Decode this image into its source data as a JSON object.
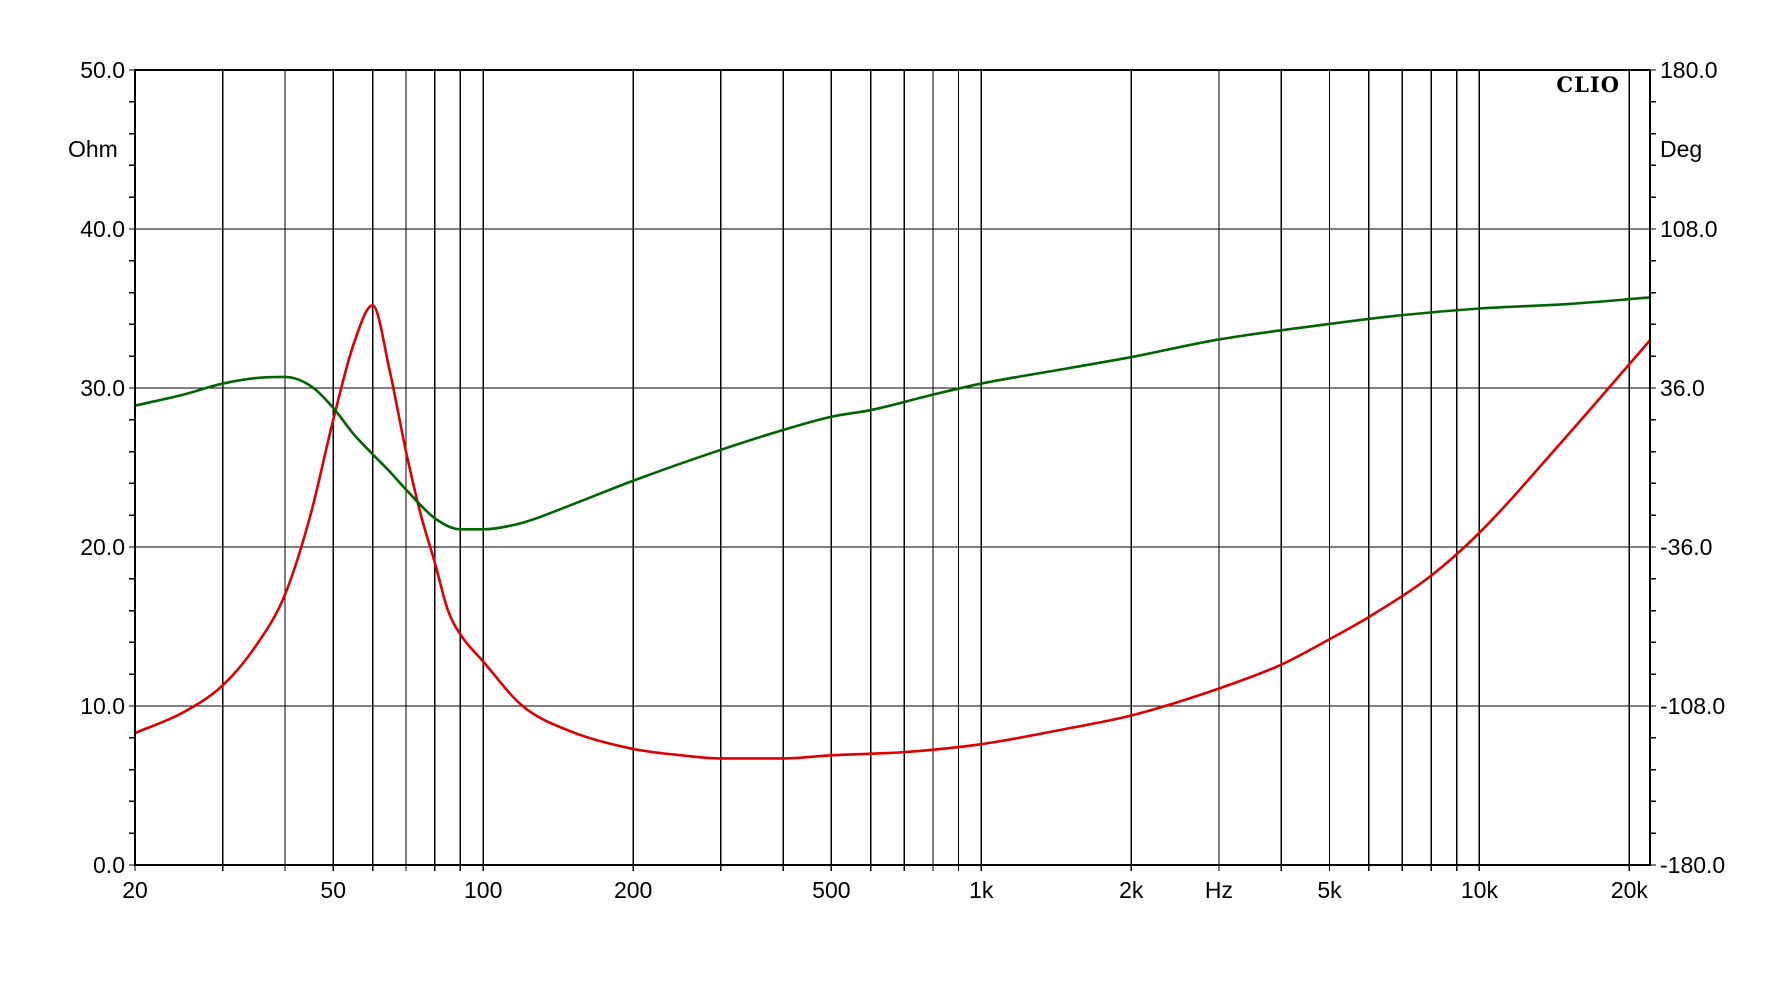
{
  "chart_data": {
    "type": "line",
    "brand": "CLIO",
    "x_scale": "log",
    "xlim": [
      20,
      22000
    ],
    "x_tick_values": [
      20,
      50,
      100,
      200,
      500,
      1000,
      2000,
      5000,
      10000,
      20000
    ],
    "x_tick_labels": [
      "20",
      "50",
      "100",
      "200",
      "500",
      "1k",
      "2k",
      "5k",
      "10k",
      "20k"
    ],
    "x_unit_label": "Hz",
    "x_unit_position": 3000,
    "x_gridlines": [
      20,
      30,
      40,
      50,
      60,
      70,
      80,
      90,
      100,
      200,
      300,
      400,
      500,
      600,
      700,
      800,
      900,
      1000,
      2000,
      3000,
      4000,
      5000,
      6000,
      7000,
      8000,
      9000,
      10000,
      20000
    ],
    "y_left": {
      "unit": "Ohm",
      "ylim": [
        0,
        50
      ],
      "tick_values": [
        0,
        10,
        20,
        30,
        40,
        50
      ],
      "tick_labels": [
        "0.0",
        "10.0",
        "20.0",
        "30.0",
        "40.0",
        "50.0"
      ]
    },
    "y_right": {
      "unit": "Deg",
      "ylim": [
        -180,
        180
      ],
      "tick_values": [
        -180,
        -108,
        -36,
        36,
        108,
        180
      ],
      "tick_labels": [
        "-180.0",
        "-108.0",
        "-36.0",
        "36.0",
        "108.0",
        "180.0"
      ]
    },
    "grid": true,
    "series": [
      {
        "color": "#dd0000",
        "axis": "left",
        "x": [
          20,
          25,
          30,
          35,
          40,
          45,
          50,
          55,
          60,
          65,
          70,
          75,
          80,
          85,
          90,
          100,
          120,
          150,
          200,
          250,
          300,
          400,
          500,
          700,
          1000,
          1500,
          2000,
          3000,
          4000,
          5000,
          6000,
          8000,
          10000,
          15000,
          20000,
          22000
        ],
        "y": [
          8.3,
          9.6,
          11.3,
          13.8,
          17.0,
          22.0,
          28.0,
          32.8,
          35.2,
          31.0,
          26.0,
          22.0,
          19.0,
          16.0,
          14.5,
          12.8,
          10.0,
          8.4,
          7.3,
          6.9,
          6.7,
          6.7,
          6.9,
          7.1,
          7.6,
          8.6,
          9.4,
          11.1,
          12.6,
          14.2,
          15.6,
          18.2,
          20.9,
          27.0,
          31.5,
          33.0
        ]
      },
      {
        "color": "#006400",
        "axis": "right",
        "x": [
          20,
          25,
          30,
          35,
          40,
          45,
          50,
          55,
          60,
          65,
          70,
          80,
          90,
          100,
          120,
          150,
          200,
          300,
          400,
          500,
          600,
          800,
          1000,
          1500,
          2000,
          3000,
          5000,
          7000,
          10000,
          15000,
          22000
        ],
        "y": [
          28,
          33,
          38,
          40.5,
          41,
          37,
          27,
          15,
          6,
          -2,
          -10,
          -23,
          -28,
          -28,
          -25,
          -17,
          -6,
          8,
          17,
          23,
          26,
          33,
          38,
          45,
          50,
          58,
          65,
          69,
          72,
          74,
          77
        ]
      }
    ]
  }
}
